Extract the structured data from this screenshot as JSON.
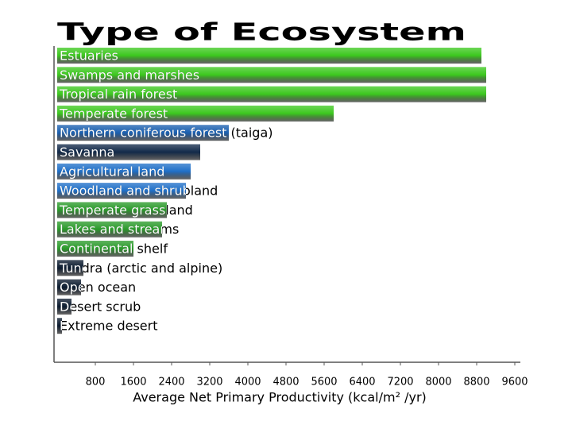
{
  "chart_data": {
    "type": "bar",
    "orientation": "horizontal",
    "title": "Type of Ecosystem",
    "x_label": "Average Net Primary Productivity (kcal/m² /yr)",
    "categories": [
      "Estuaries",
      "Swamps and marshes",
      "Tropical rain forest",
      "Temperate forest",
      "Northern coniferous forest (taiga)",
      "Savanna",
      "Agricultural land",
      "Woodland and shrubland",
      "Temperate grassland",
      "Lakes and streams",
      "Continental shelf",
      "Tundra (arctic and alpine)",
      "Open ocean",
      "Desert scrub",
      "Extreme desert"
    ],
    "values": [
      8900,
      9000,
      9000,
      5800,
      3600,
      3000,
      2800,
      2700,
      2300,
      2200,
      1600,
      550,
      500,
      300,
      100
    ],
    "colors": [
      "#3cc81e",
      "#3cc81e",
      "#3cc81e",
      "#3cc81e",
      "#1a5fb0",
      "#122a4a",
      "#1f6fc8",
      "#1f6fc8",
      "#2a9a2a",
      "#2a9a2a",
      "#2a9a2a",
      "#0a1a2e",
      "#0a1a2e",
      "#0a1a2e",
      "#0a1a2e"
    ],
    "xlim": [
      0,
      9600
    ],
    "xticks": [
      800,
      1600,
      2400,
      3200,
      4000,
      4800,
      5600,
      6400,
      7200,
      8000,
      8800,
      9600
    ]
  }
}
